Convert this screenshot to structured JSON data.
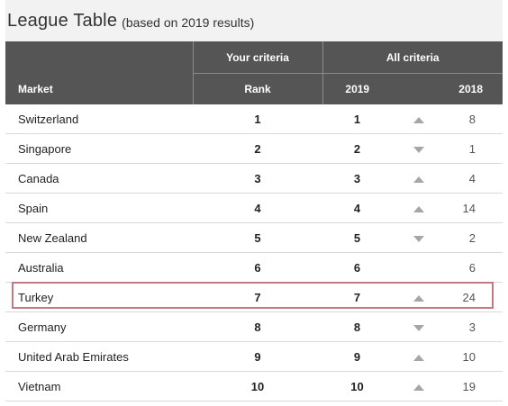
{
  "title": {
    "main": "League Table",
    "sub": "(based on 2019 results)"
  },
  "header": {
    "group_your": "Your criteria",
    "group_all": "All criteria",
    "market": "Market",
    "rank": "Rank",
    "y2019": "2019",
    "y2018": "2018"
  },
  "highlight": {
    "row": "Turkey",
    "color": "#c47a80"
  },
  "colors": {
    "header_bg": "#555555",
    "title_bg": "#f2f2f2",
    "arrow": "#a6a6a6"
  },
  "rows": [
    {
      "market": "Switzerland",
      "rank": "1",
      "y2019": "1",
      "trend": "up",
      "y2018": "8"
    },
    {
      "market": "Singapore",
      "rank": "2",
      "y2019": "2",
      "trend": "down",
      "y2018": "1"
    },
    {
      "market": "Canada",
      "rank": "3",
      "y2019": "3",
      "trend": "up",
      "y2018": "4"
    },
    {
      "market": "Spain",
      "rank": "4",
      "y2019": "4",
      "trend": "up",
      "y2018": "14"
    },
    {
      "market": "New Zealand",
      "rank": "5",
      "y2019": "5",
      "trend": "down",
      "y2018": "2"
    },
    {
      "market": "Australia",
      "rank": "6",
      "y2019": "6",
      "trend": "none",
      "y2018": "6"
    },
    {
      "market": "Turkey",
      "rank": "7",
      "y2019": "7",
      "trend": "up",
      "y2018": "24"
    },
    {
      "market": "Germany",
      "rank": "8",
      "y2019": "8",
      "trend": "down",
      "y2018": "3"
    },
    {
      "market": "United Arab Emirates",
      "rank": "9",
      "y2019": "9",
      "trend": "up",
      "y2018": "10"
    },
    {
      "market": "Vietnam",
      "rank": "10",
      "y2019": "10",
      "trend": "up",
      "y2018": "19"
    }
  ]
}
